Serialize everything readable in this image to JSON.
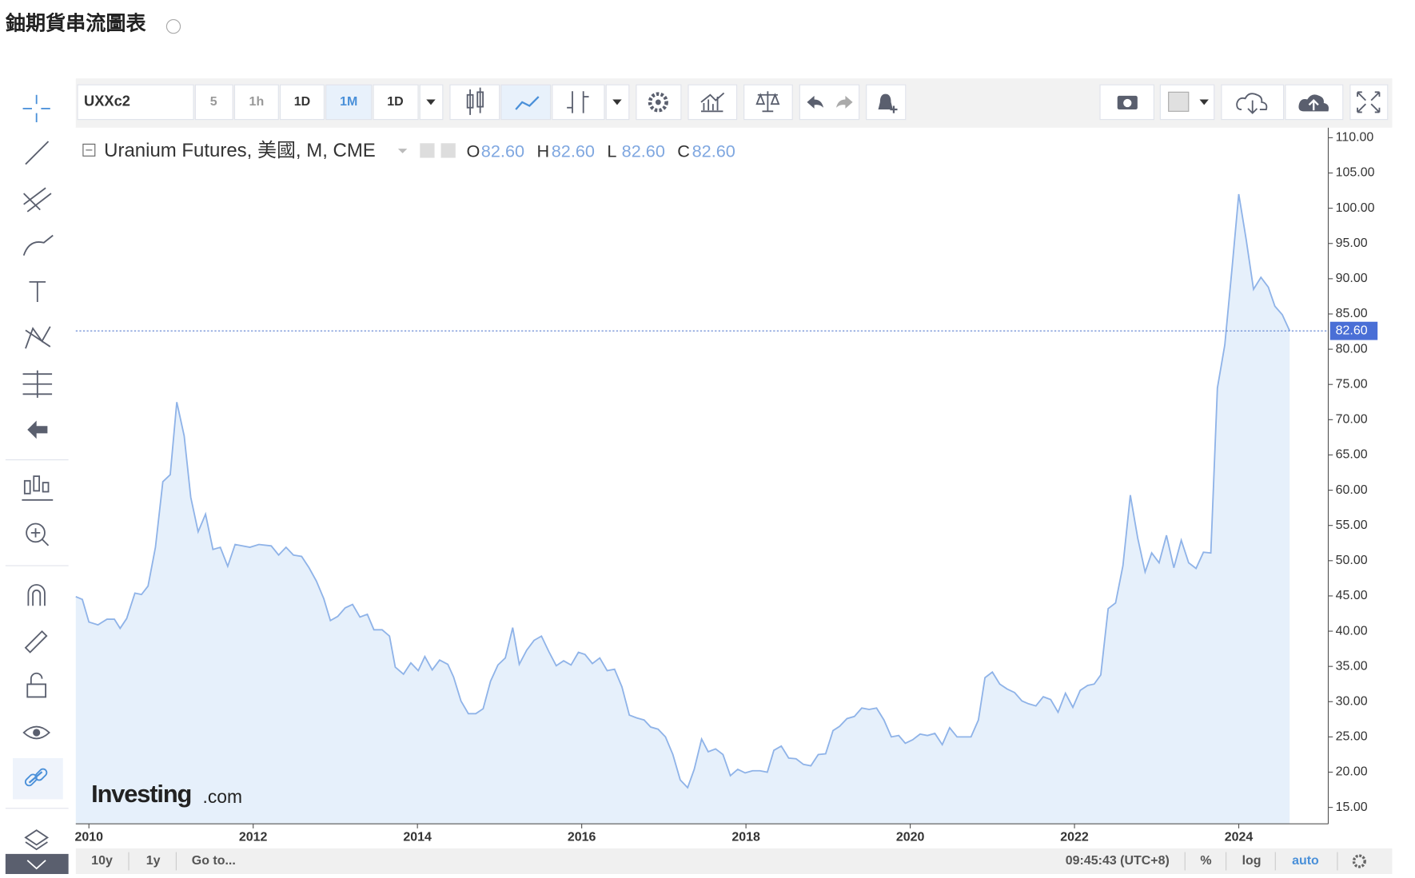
{
  "header": {
    "title": "鈾期貨串流圖表"
  },
  "toolbar": {
    "symbol": "UXXc2",
    "intervals": [
      "5",
      "1h",
      "1D",
      "1M",
      "1D"
    ]
  },
  "legend": {
    "text": "Uranium Futures, 美國, M, CME",
    "ohlc": [
      {
        "name": "O",
        "value": 82.6,
        "label": "82.60"
      },
      {
        "name": "H",
        "value": 82.6,
        "label": "82.60"
      },
      {
        "name": "L",
        "value": 82.6,
        "label": "82.60"
      },
      {
        "name": "C",
        "value": 82.6,
        "label": "82.60"
      }
    ]
  },
  "logo": {
    "brand": "Investing",
    "suffix": ".com"
  },
  "bottom_bar": {
    "ranges": [
      "10y",
      "1y",
      "Go to..."
    ],
    "time": "09:45:43 (UTC+8)",
    "options": [
      "%",
      "log",
      "auto"
    ]
  },
  "chart_data": {
    "type": "line",
    "color": "#8fb3e8",
    "fill": "#e6f0fb",
    "xlim": [
      2009.84,
      2025.09
    ],
    "ylim": [
      12.67,
      111.42
    ],
    "xticks": [
      2010,
      2012,
      2014,
      2016,
      2018,
      2020,
      2022,
      2024
    ],
    "yticks": [
      {
        "value": 15,
        "label": "15.00"
      },
      {
        "value": 20,
        "label": "20.00"
      },
      {
        "value": 25,
        "label": "25.00"
      },
      {
        "value": 30,
        "label": "30.00"
      },
      {
        "value": 35,
        "label": "35.00"
      },
      {
        "value": 40,
        "label": "40.00"
      },
      {
        "value": 45,
        "label": "45.00"
      },
      {
        "value": 50,
        "label": "50.00"
      },
      {
        "value": 55,
        "label": "55.00"
      },
      {
        "value": 60,
        "label": "60.00"
      },
      {
        "value": 65,
        "label": "65.00"
      },
      {
        "value": 70,
        "label": "70.00"
      },
      {
        "value": 75,
        "label": "75.00"
      },
      {
        "value": 80,
        "label": "80.00"
      },
      {
        "value": 85,
        "label": "85.00"
      },
      {
        "value": 90,
        "label": "90.00"
      },
      {
        "value": 95,
        "label": "95.00"
      },
      {
        "value": 100,
        "label": "100.00"
      },
      {
        "value": 105,
        "label": "105.00"
      },
      {
        "value": 110,
        "label": "110.00"
      }
    ],
    "last_price": {
      "value": 82.6,
      "label": "82.60"
    },
    "x": [
      2009.84,
      2009.92,
      2010.0,
      2010.11,
      2010.22,
      2010.31,
      2010.38,
      2010.46,
      2010.56,
      2010.64,
      2010.72,
      2010.81,
      2010.9,
      2010.99,
      2011.07,
      2011.16,
      2011.24,
      2011.33,
      2011.42,
      2011.51,
      2011.6,
      2011.69,
      2011.78,
      2011.96,
      2012.07,
      2012.22,
      2012.31,
      2012.4,
      2012.49,
      2012.59,
      2012.68,
      2012.77,
      2012.86,
      2012.94,
      2013.03,
      2013.12,
      2013.21,
      2013.3,
      2013.39,
      2013.47,
      2013.57,
      2013.66,
      2013.73,
      2013.83,
      2013.92,
      2014.01,
      2014.09,
      2014.18,
      2014.27,
      2014.37,
      2014.44,
      2014.53,
      2014.62,
      2014.71,
      2014.8,
      2014.89,
      2014.98,
      2015.07,
      2015.16,
      2015.24,
      2015.33,
      2015.42,
      2015.51,
      2015.6,
      2015.69,
      2015.78,
      2015.87,
      2015.96,
      2016.04,
      2016.13,
      2016.22,
      2016.31,
      2016.4,
      2016.49,
      2016.58,
      2016.67,
      2016.76,
      2016.84,
      2016.93,
      2017.02,
      2017.11,
      2017.2,
      2017.29,
      2017.37,
      2017.46,
      2017.54,
      2017.63,
      2017.72,
      2017.81,
      2017.9,
      2017.99,
      2018.08,
      2018.17,
      2018.26,
      2018.34,
      2018.43,
      2018.52,
      2018.61,
      2018.7,
      2018.79,
      2018.88,
      2018.97,
      2019.06,
      2019.14,
      2019.23,
      2019.32,
      2019.41,
      2019.5,
      2019.59,
      2019.68,
      2019.77,
      2019.86,
      2019.94,
      2020.03,
      2020.12,
      2020.21,
      2020.3,
      2020.39,
      2020.48,
      2020.57,
      2020.66,
      2020.74,
      2020.83,
      2020.91,
      2021.0,
      2021.09,
      2021.18,
      2021.27,
      2021.36,
      2021.44,
      2021.53,
      2021.62,
      2021.71,
      2021.8,
      2021.89,
      2021.98,
      2022.07,
      2022.16,
      2022.24,
      2022.32,
      2022.41,
      2022.5,
      2022.59,
      2022.68,
      2022.77,
      2022.86,
      2022.94,
      2023.03,
      2023.12,
      2023.21,
      2023.3,
      2023.39,
      2023.48,
      2023.57,
      2023.66,
      2023.74,
      2023.83,
      2023.92,
      2024.0,
      2024.09,
      2024.18,
      2024.27,
      2024.36,
      2024.44,
      2024.53,
      2024.62
    ],
    "values": [
      44.9,
      44.5,
      41.3,
      40.9,
      41.7,
      41.7,
      40.4,
      41.8,
      45.4,
      45.2,
      46.4,
      51.9,
      61.2,
      62.2,
      72.5,
      67.7,
      59.0,
      54.1,
      56.6,
      51.6,
      51.9,
      49.2,
      52.3,
      51.9,
      52.3,
      52.1,
      50.8,
      51.9,
      50.8,
      50.6,
      49.0,
      47.1,
      44.6,
      41.5,
      42.1,
      43.3,
      43.8,
      42.0,
      42.4,
      40.2,
      40.2,
      39.3,
      34.9,
      33.9,
      35.5,
      34.4,
      36.4,
      34.5,
      35.9,
      35.3,
      33.5,
      30.1,
      28.3,
      28.3,
      29.0,
      32.9,
      35.2,
      36.2,
      40.5,
      35.3,
      37.3,
      38.7,
      39.3,
      37.1,
      35.1,
      35.8,
      35.2,
      37.0,
      36.7,
      35.4,
      36.2,
      34.4,
      34.6,
      32.1,
      28.1,
      27.7,
      27.4,
      26.4,
      26.1,
      25.0,
      22.5,
      18.9,
      17.8,
      20.4,
      24.7,
      22.9,
      23.3,
      22.5,
      19.5,
      20.4,
      19.9,
      20.2,
      20.2,
      20.0,
      23.1,
      23.7,
      22.0,
      21.9,
      21.1,
      20.9,
      22.5,
      22.6,
      25.9,
      26.5,
      27.6,
      27.9,
      29.1,
      28.9,
      29.1,
      27.4,
      25.0,
      25.2,
      24.1,
      24.6,
      25.4,
      25.2,
      25.5,
      23.9,
      26.3,
      25.0,
      25.0,
      25.0,
      27.4,
      33.4,
      34.2,
      32.5,
      31.8,
      31.3,
      30.1,
      29.7,
      29.4,
      30.7,
      30.3,
      28.5,
      31.2,
      29.2,
      31.6,
      32.3,
      32.5,
      33.8,
      43.2,
      44.0,
      49.3,
      59.3,
      53.2,
      48.4,
      51.1,
      49.7,
      53.6,
      49.0,
      52.9,
      49.7,
      48.9,
      51.2,
      51.1,
      74.5,
      80.6,
      91.7,
      102.0,
      95.6,
      88.5,
      90.2,
      88.8,
      86.1,
      84.9,
      82.6
    ]
  }
}
